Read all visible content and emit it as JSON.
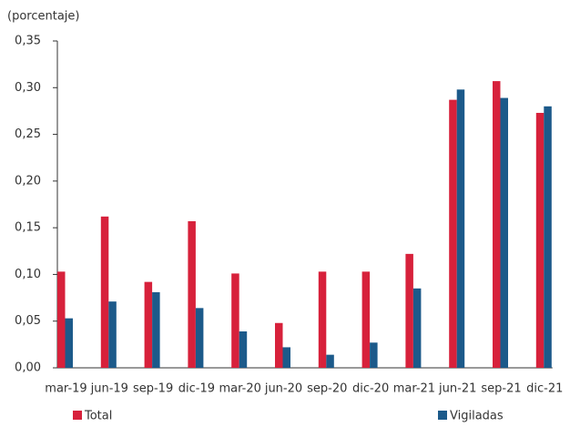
{
  "chart_data": {
    "type": "bar",
    "y_label": "(porcentaje)",
    "categories": [
      "mar-19",
      "jun-19",
      "sep-19",
      "dic-19",
      "mar-20",
      "jun-20",
      "sep-20",
      "dic-20",
      "mar-21",
      "jun-21",
      "sep-21",
      "dic-21"
    ],
    "series": [
      {
        "name": "Total",
        "color": "#d7213b",
        "values": [
          0.103,
          0.162,
          0.092,
          0.157,
          0.101,
          0.048,
          0.103,
          0.103,
          0.122,
          0.287,
          0.307,
          0.273
        ]
      },
      {
        "name": "Vigiladas",
        "color": "#1c5a8a",
        "values": [
          0.053,
          0.071,
          0.081,
          0.064,
          0.039,
          0.022,
          0.014,
          0.027,
          0.085,
          0.298,
          0.289,
          0.28
        ]
      }
    ],
    "ylim": [
      0,
      0.35
    ],
    "yticks": [
      {
        "value": 0,
        "label": "0,00"
      },
      {
        "value": 0.05,
        "label": "0,05"
      },
      {
        "value": 0.1,
        "label": "0,10"
      },
      {
        "value": 0.15,
        "label": "0,15"
      },
      {
        "value": 0.2,
        "label": "0,20"
      },
      {
        "value": 0.25,
        "label": "0,25"
      },
      {
        "value": 0.3,
        "label": "0,30"
      },
      {
        "value": 0.35,
        "label": "0,35"
      }
    ],
    "grid": false,
    "legend": "bottom"
  }
}
